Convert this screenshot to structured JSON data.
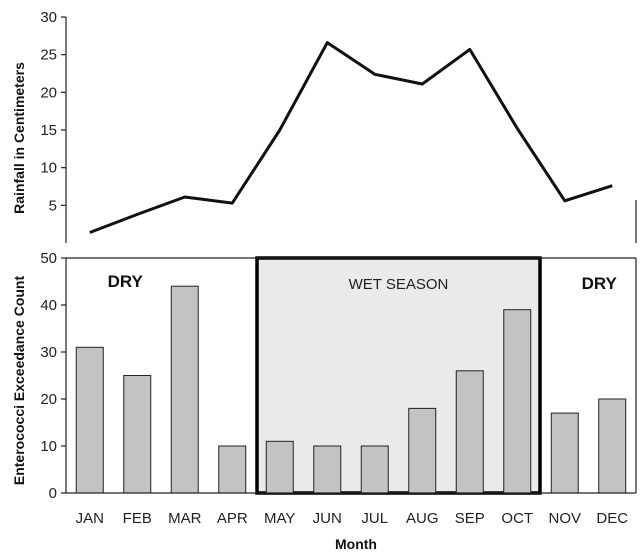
{
  "chart_data": [
    {
      "type": "line",
      "ylabel": "Rainfall in Centimeters",
      "ylim": [
        0,
        30
      ],
      "yticks": [
        5,
        10,
        15,
        20,
        25,
        30
      ],
      "categories": [
        "JAN",
        "FEB",
        "MAR",
        "APR",
        "MAY",
        "JUN",
        "JUL",
        "AUG",
        "SEP",
        "OCT",
        "NOV",
        "DEC"
      ],
      "series": [
        {
          "values": [
            1.4,
            3.8,
            6.1,
            5.3,
            15.0,
            26.6,
            22.4,
            21.1,
            25.7,
            15.2,
            5.6,
            7.6
          ]
        }
      ],
      "colors": {
        "line": "#111111"
      }
    },
    {
      "type": "bar",
      "ylabel": "Enterococci Exceedance Count",
      "xlabel": "Month",
      "ylim": [
        0,
        50
      ],
      "yticks": [
        0,
        10,
        20,
        30,
        40,
        50
      ],
      "categories": [
        "JAN",
        "FEB",
        "MAR",
        "APR",
        "MAY",
        "JUN",
        "JUL",
        "AUG",
        "SEP",
        "OCT",
        "NOV",
        "DEC"
      ],
      "series": [
        {
          "values": [
            31,
            25,
            44,
            10,
            11,
            10,
            10,
            18,
            26,
            39,
            17,
            20
          ]
        }
      ],
      "annotations": {
        "dry_left": "DRY",
        "wet": "WET SEASON",
        "dry_right": "DRY"
      },
      "wet_season_months": [
        "MAY",
        "OCT"
      ],
      "colors": {
        "bar_fill": "#c3c3c3",
        "bar_stroke": "#222222",
        "wet_fill": "#eaeaea",
        "wet_stroke": "#000000"
      }
    }
  ]
}
